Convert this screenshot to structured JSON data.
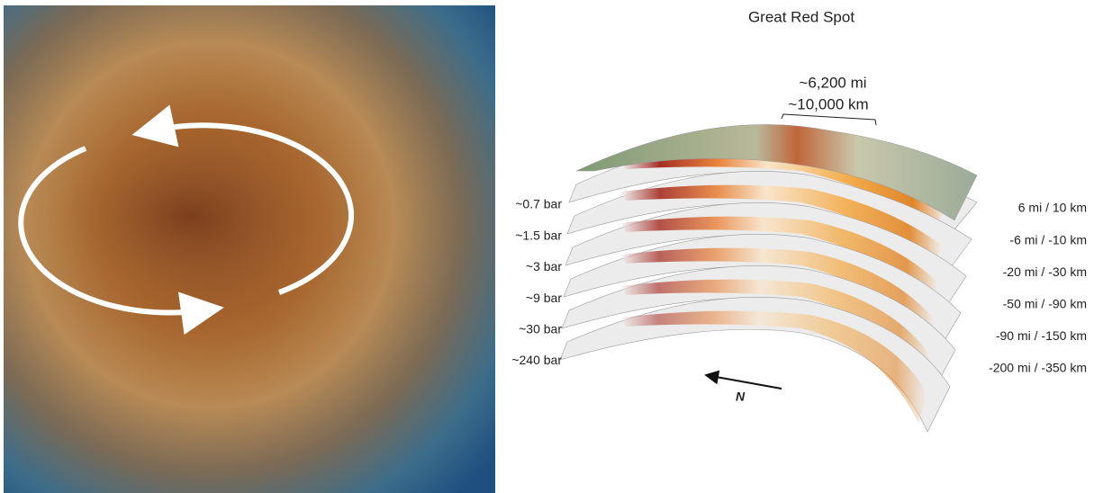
{
  "figure": {
    "title": "Great Red Spot",
    "width_labels": [
      "~6,200 mi",
      "~10,000 km"
    ],
    "pressure_levels": [
      "~0.7 bar",
      "~1.5 bar",
      "~3 bar",
      "~9 bar",
      "~30 bar",
      "~240 bar"
    ],
    "depths": [
      "6 mi / 10 km",
      "-6 mi / -10 km",
      "-20 mi / -30 km",
      "-50 mi / -90 km",
      "-90 mi / -150 km",
      "-200 mi / -350 km"
    ],
    "north_label": "N"
  }
}
